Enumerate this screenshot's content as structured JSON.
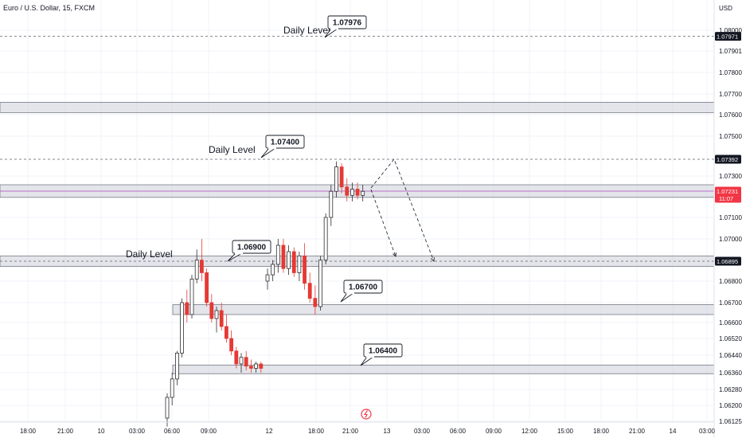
{
  "header": {
    "symbol_title": "Euro / U.S. Dollar, 15, FXCM",
    "currency": "USD"
  },
  "colors": {
    "up": "#2d2d2d",
    "down": "#e53935",
    "zone_fill": "#d1d4dc",
    "zone_border": "#787b86",
    "price_line": "#ab47bc",
    "current_badge": "#f23645",
    "dark_badge": "#131722",
    "grid": "#f0f3fa"
  },
  "chart_data": {
    "type": "candlestick",
    "title": "Euro / U.S. Dollar, 15, FXCM",
    "y_axis": {
      "label": "USD",
      "min": 1.06125,
      "max": 1.08075,
      "ticks": [
        1.08,
        1.07901,
        1.078,
        1.077,
        1.076,
        1.075,
        1.073,
        1.071,
        1.07,
        1.068,
        1.067,
        1.066,
        1.0652,
        1.0644,
        1.0636,
        1.0628,
        1.062,
        1.06125
      ],
      "tick_labels": [
        "1.08000",
        "1.07901",
        "1.07800",
        "1.07700",
        "1.07600",
        "1.07500",
        "1.07300",
        "1.07100",
        "1.07000",
        "1.06800",
        "1.06700",
        "1.06600",
        "1.06520",
        "1.06440",
        "1.06360",
        "1.06280",
        "1.06200",
        "1.06125"
      ]
    },
    "x_axis": {
      "ticks": [
        "18:00",
        "21:00",
        "10",
        "03:00",
        "06:00",
        "09:00",
        "12",
        "18:00",
        "21:00",
        "13",
        "03:00",
        "06:00",
        "09:00",
        "12:00",
        "15:00",
        "18:00",
        "21:00",
        "14",
        "03:00"
      ]
    },
    "price_labels": [
      {
        "value": 1.07971,
        "text": "1.07971",
        "style": "dark"
      },
      {
        "value": 1.07392,
        "text": "1.07392",
        "style": "dark"
      },
      {
        "value": 1.07231,
        "text": "1.07231",
        "sub": "11:07",
        "style": "current"
      },
      {
        "value": 1.06895,
        "text": "1.06895",
        "style": "dark"
      }
    ],
    "dashed_levels": [
      1.07971,
      1.07392,
      1.06895
    ],
    "current_price": 1.07231,
    "zones": [
      {
        "low": 1.0761,
        "high": 1.0766,
        "start": 0
      },
      {
        "low": 1.072,
        "high": 1.0726,
        "start": 0
      },
      {
        "low": 1.0687,
        "high": 1.0692,
        "start": 0
      },
      {
        "low": 1.0664,
        "high": 1.0669,
        "start": 7
      },
      {
        "low": 1.06355,
        "high": 1.06395,
        "start": 7
      }
    ],
    "annotations": [
      {
        "text": "1.07976",
        "price": 1.07976,
        "daily_label": "Daily Level"
      },
      {
        "text": "1.07400",
        "price": 1.074,
        "daily_label": "Daily Level"
      },
      {
        "text": "1.06900",
        "price": 1.069,
        "daily_label": "Daily Level"
      },
      {
        "text": "1.06700",
        "price": 1.067,
        "daily_label": ""
      },
      {
        "text": "1.06400",
        "price": 1.064,
        "daily_label": ""
      }
    ],
    "projection": {
      "path_a": [
        [
          1.07231,
          0
        ],
        [
          1.07392,
          0
        ],
        [
          1.06895,
          0
        ]
      ],
      "path_b": [
        [
          1.07231,
          0
        ],
        [
          1.06895,
          0
        ]
      ]
    },
    "candles": [
      [
        1.0614,
        1.0626,
        1.061,
        1.0624
      ],
      [
        1.0624,
        1.0636,
        1.062,
        1.0633
      ],
      [
        1.0633,
        1.0646,
        1.063,
        1.0645
      ],
      [
        1.0645,
        1.0672,
        1.0643,
        1.067
      ],
      [
        1.067,
        1.0676,
        1.066,
        1.0664
      ],
      [
        1.0664,
        1.0683,
        1.0662,
        1.0681
      ],
      [
        1.0681,
        1.0695,
        1.0679,
        1.069
      ],
      [
        1.069,
        1.07,
        1.068,
        1.0684
      ],
      [
        1.0684,
        1.0686,
        1.0668,
        1.067
      ],
      [
        1.067,
        1.0674,
        1.066,
        1.0662
      ],
      [
        1.0662,
        1.0668,
        1.0655,
        1.0666
      ],
      [
        1.0666,
        1.067,
        1.0656,
        1.0658
      ],
      [
        1.0658,
        1.0664,
        1.065,
        1.0652
      ],
      [
        1.0652,
        1.0656,
        1.0644,
        1.0646
      ],
      [
        1.0646,
        1.0648,
        1.0638,
        1.064
      ],
      [
        1.064,
        1.0645,
        1.0636,
        1.0643
      ],
      [
        1.0643,
        1.0646,
        1.0637,
        1.0639
      ],
      [
        1.0639,
        1.0642,
        1.0636,
        1.0638
      ],
      [
        1.0638,
        1.0641,
        1.0636,
        1.064
      ],
      [
        1.064,
        1.0641,
        1.0636,
        1.0638
      ],
      [
        1.068,
        1.0686,
        1.0676,
        1.0683
      ],
      [
        1.0683,
        1.069,
        1.068,
        1.0688
      ],
      [
        1.0688,
        1.07,
        1.0684,
        1.0697
      ],
      [
        1.0697,
        1.07,
        1.0684,
        1.0686
      ],
      [
        1.0686,
        1.0697,
        1.0683,
        1.0694
      ],
      [
        1.0694,
        1.0696,
        1.0682,
        1.0684
      ],
      [
        1.0684,
        1.0694,
        1.068,
        1.0692
      ],
      [
        1.0692,
        1.0698,
        1.0676,
        1.0679
      ],
      [
        1.0679,
        1.0684,
        1.067,
        1.0672
      ],
      [
        1.0672,
        1.0678,
        1.0664,
        1.0668
      ],
      [
        1.0668,
        1.0692,
        1.0666,
        1.069
      ],
      [
        1.069,
        1.0712,
        1.0688,
        1.071
      ],
      [
        1.071,
        1.0726,
        1.0706,
        1.0723
      ],
      [
        1.0723,
        1.0738,
        1.072,
        1.0735
      ],
      [
        1.0735,
        1.0737,
        1.0722,
        1.0725
      ],
      [
        1.0725,
        1.0729,
        1.0718,
        1.0721
      ],
      [
        1.0721,
        1.0727,
        1.0718,
        1.0724
      ],
      [
        1.0724,
        1.0727,
        1.0719,
        1.0721
      ],
      [
        1.0721,
        1.0726,
        1.0718,
        1.0723
      ]
    ]
  }
}
